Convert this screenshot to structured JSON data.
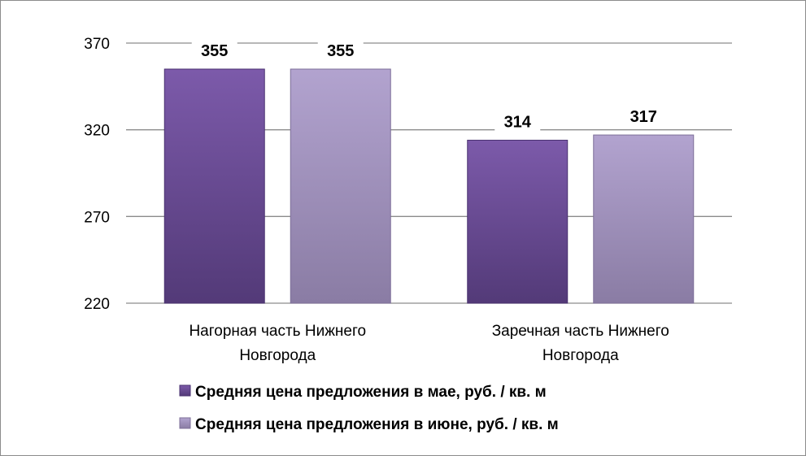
{
  "chart_data": {
    "type": "bar",
    "categories": [
      [
        "Нагорная часть Нижнего",
        "Новгорода"
      ],
      [
        "Заречная часть Нижнего",
        "Новгорода"
      ]
    ],
    "series": [
      {
        "name": "Средняя цена предложения в мае, руб. / кв. м",
        "values": [
          355,
          314
        ],
        "color": "#6f4f9a"
      },
      {
        "name": "Средняя цена предложения в июне, руб. / кв. м",
        "values": [
          355,
          317
        ],
        "color": "#a596c0"
      }
    ],
    "ylim": [
      220,
      370
    ],
    "yticks": [
      220,
      270,
      320,
      370
    ],
    "grid": true,
    "legend": "bottom"
  }
}
